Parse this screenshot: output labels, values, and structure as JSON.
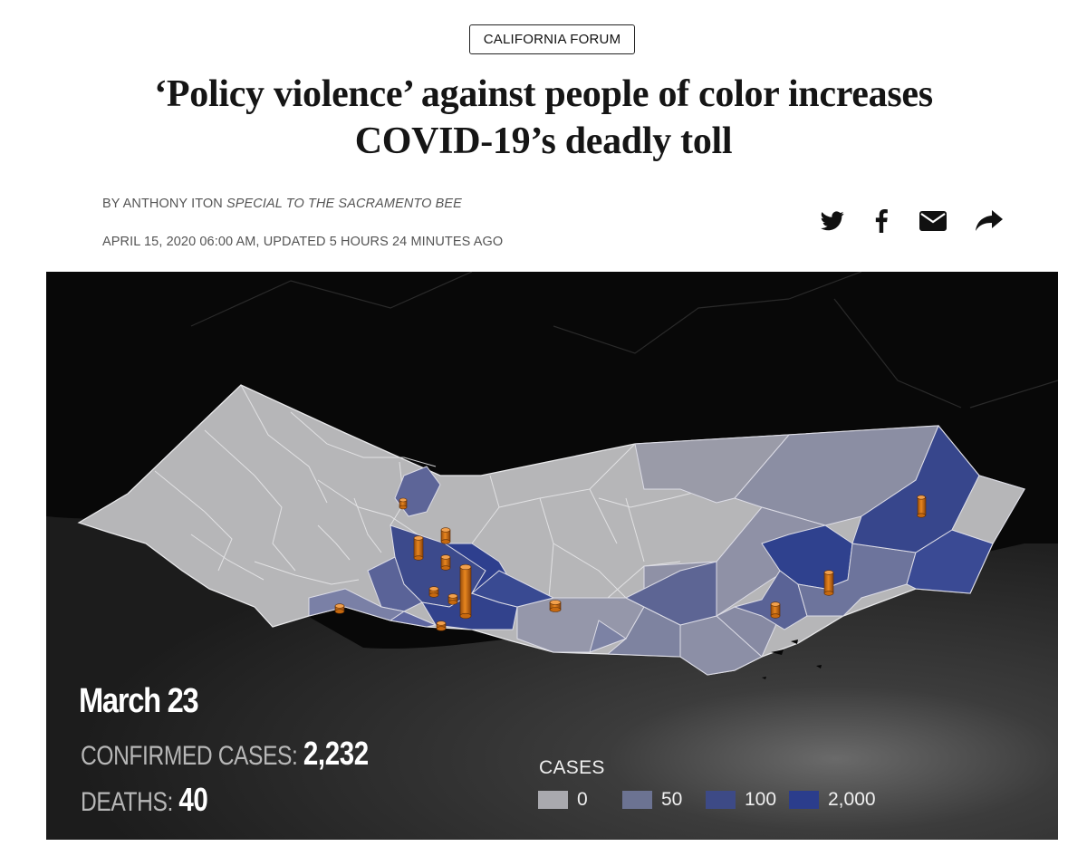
{
  "article": {
    "section": "CALIFORNIA FORUM",
    "headline_line1": "‘Policy violence’ against people of color increases",
    "headline_line2": "COVID-19’s deadly toll",
    "byline_prefix": "BY ANTHONY ITON",
    "byline_affiliation": "SPECIAL TO THE SACRAMENTO BEE",
    "dateline": "APRIL 15, 2020 06:00 AM, UPDATED 5 HOURS 24 MINUTES AGO"
  },
  "share_icons": [
    "twitter-icon",
    "facebook-icon",
    "email-icon",
    "share-icon"
  ],
  "map": {
    "date": "March 23",
    "cases_label": "CONFIRMED CASES:",
    "cases_value": "2,232",
    "deaths_label": "DEATHS:",
    "deaths_value": "40",
    "legend_title": "CASES",
    "legend": [
      {
        "label": "0",
        "color": "#a9a9ae"
      },
      {
        "label": "50",
        "color": "#6c7392"
      },
      {
        "label": "100",
        "color": "#3d4a86"
      },
      {
        "label": "2,000",
        "color": "#2b3d8c"
      }
    ],
    "bar_color": "#e07a1a"
  }
}
